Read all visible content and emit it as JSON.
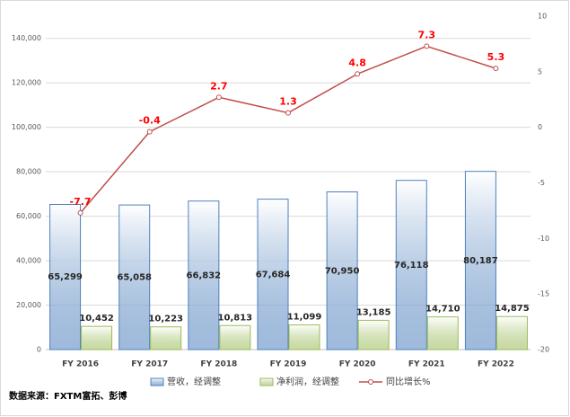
{
  "chart_data": {
    "type": "bar",
    "categories": [
      "FY 2016",
      "FY 2017",
      "FY 2018",
      "FY 2019",
      "FY 2020",
      "FY 2021",
      "FY 2022"
    ],
    "series": [
      {
        "name": "营收，经调整",
        "type": "bar",
        "color": "#4f81bd",
        "values": [
          65299,
          65058,
          66832,
          67684,
          70950,
          76118,
          80187
        ],
        "value_labels": [
          "65,299",
          "65,058",
          "66,832",
          "67,684",
          "70,950",
          "76,118",
          "80,187"
        ]
      },
      {
        "name": "净利润，经调整",
        "type": "bar",
        "color": "#9bbb59",
        "values": [
          10452,
          10223,
          10813,
          11099,
          13185,
          14710,
          14875
        ],
        "value_labels": [
          "10,452",
          "10,223",
          "10,813",
          "11,099",
          "13,185",
          "14,710",
          "14,875"
        ]
      },
      {
        "name": "同比增长%",
        "type": "line",
        "axis": "y2",
        "color": "#c0504d",
        "label_color": "#ff0000",
        "values": [
          -7.7,
          -0.4,
          2.7,
          1.3,
          4.8,
          7.3,
          5.3
        ]
      }
    ],
    "ylim": [
      0,
      150000
    ],
    "yticks": [
      0,
      {
        "value": 20000,
        "label": "20,000"
      },
      {
        "value": 40000,
        "label": "40,000"
      },
      {
        "value": 60000,
        "label": "60,000"
      },
      {
        "value": 80000,
        "label": "80,000"
      },
      {
        "value": 100000,
        "label": "100,000"
      },
      {
        "value": 120000,
        "label": "120,000"
      },
      {
        "value": 140000,
        "label": "140,000"
      }
    ],
    "y2lim": [
      -20,
      10
    ],
    "y2ticks": [
      -20,
      -15,
      -10,
      -5,
      0,
      5,
      10
    ],
    "grid": true,
    "legend": "bottom",
    "source": "数据来源：FXTM富拓、彭博"
  }
}
